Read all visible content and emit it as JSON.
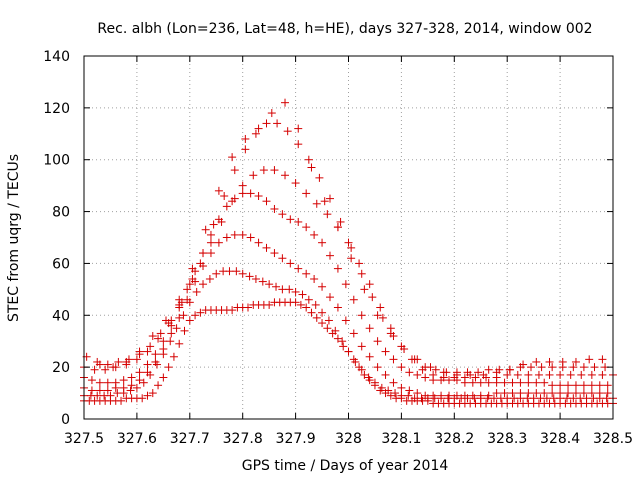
{
  "chart_data": {
    "type": "scatter",
    "title": "Rec. albh (Lon=236, Lat=48, h=HE), days 327-328, 2014, window 002",
    "xlabel": "GPS time / Days of year 2014",
    "ylabel": "STEC from uqrg / TECUs",
    "xlim": [
      327.5,
      328.5
    ],
    "ylim": [
      0,
      140
    ],
    "xticks": [
      327.5,
      327.6,
      327.7,
      327.8,
      327.9,
      328,
      328.1,
      328.2,
      328.3,
      328.4,
      328.5
    ],
    "xtick_labels": [
      "327.5",
      "327.6",
      "327.7",
      "327.8",
      "327.9",
      "328",
      "328.1",
      "328.2",
      "328.3",
      "328.4",
      "328.5"
    ],
    "yticks": [
      0,
      20,
      40,
      60,
      80,
      100,
      120,
      140
    ],
    "ytick_labels": [
      "0",
      "20",
      "40",
      "60",
      "80",
      "100",
      "120",
      "140"
    ],
    "grid": true,
    "marker": "+",
    "color": "#d40000",
    "series": [
      {
        "x": [
          327.5,
          327.51,
          327.52,
          327.53,
          327.54,
          327.55,
          327.56,
          327.57,
          327.58,
          327.59,
          327.6,
          327.61,
          327.62,
          327.63,
          327.64,
          327.65,
          327.66,
          327.67,
          327.68,
          327.69,
          327.7,
          327.71,
          327.72,
          327.73,
          327.74,
          327.75,
          327.76,
          327.77,
          327.78,
          327.79,
          327.8,
          327.81,
          327.82,
          327.83,
          327.84,
          327.85,
          327.86,
          327.87,
          327.88,
          327.89,
          327.9,
          327.91,
          327.92,
          327.93,
          327.94,
          327.95,
          327.96,
          327.97,
          327.98,
          327.99,
          328.0,
          328.01,
          328.02,
          328.03,
          328.04,
          328.05,
          328.06,
          328.07,
          328.08,
          328.09,
          328.1,
          328.11,
          328.12,
          328.13,
          328.14,
          328.15,
          328.16,
          328.17,
          328.18,
          328.19,
          328.2,
          328.21,
          328.22,
          328.23,
          328.24,
          328.25,
          328.26,
          328.27,
          328.28,
          328.29,
          328.3,
          328.31,
          328.32,
          328.33,
          328.34,
          328.35,
          328.36,
          328.37,
          328.38,
          328.39,
          328.4,
          328.41,
          328.42,
          328.43,
          328.44,
          328.45,
          328.46,
          328.47,
          328.48,
          328.49,
          328.5
        ],
        "y": [
          7,
          7,
          7,
          7,
          7,
          7,
          7,
          7,
          8,
          8,
          8,
          8,
          9,
          10,
          13,
          16,
          20,
          24,
          29,
          34,
          38,
          40,
          41,
          42,
          42,
          42,
          42,
          42,
          42,
          43,
          43,
          43,
          44,
          44,
          44,
          44,
          45,
          45,
          45,
          45,
          45,
          44,
          43,
          41,
          39,
          37,
          35,
          33,
          31,
          28,
          26,
          23,
          20,
          17,
          15,
          13,
          11,
          10,
          9,
          8,
          8,
          7,
          7,
          7,
          7,
          7,
          6,
          6,
          6,
          6,
          6,
          6,
          6,
          6,
          6,
          6,
          6,
          6,
          6,
          6,
          6,
          6,
          6,
          6,
          6,
          6,
          6,
          6,
          6,
          6,
          6,
          6,
          6,
          6,
          6,
          6,
          6,
          6,
          6,
          6,
          6
        ]
      },
      {
        "x": [
          327.5,
          327.513,
          327.525,
          327.538,
          327.55,
          327.563,
          327.575,
          327.588,
          327.6,
          327.613,
          327.625,
          327.638,
          327.65,
          327.663,
          327.675,
          327.688,
          327.7,
          327.713,
          327.725,
          327.738,
          327.75,
          327.763,
          327.775,
          327.788,
          327.8,
          327.813,
          327.825,
          327.838,
          327.85,
          327.863,
          327.875,
          327.888,
          327.9,
          327.913,
          327.925,
          327.938,
          327.95,
          327.963,
          327.975,
          327.988,
          328.0,
          328.013,
          328.025,
          328.038,
          328.05,
          328.063,
          328.075,
          328.088,
          328.1,
          328.113,
          328.125,
          328.138,
          328.15,
          328.163,
          328.175,
          328.188,
          328.2,
          328.213,
          328.225,
          328.238,
          328.25,
          328.263,
          328.275,
          328.288,
          328.3,
          328.313,
          328.325,
          328.338,
          328.35,
          328.363,
          328.375,
          328.388,
          328.4,
          328.413,
          328.425,
          328.438,
          328.45,
          328.463,
          328.475,
          328.488,
          328.5
        ],
        "y": [
          9,
          9,
          9,
          9,
          9,
          10,
          10,
          11,
          12,
          14,
          17,
          21,
          25,
          30,
          35,
          40,
          45,
          49,
          52,
          54,
          56,
          57,
          57,
          57,
          56,
          55,
          54,
          53,
          52,
          51,
          50,
          50,
          49,
          48,
          46,
          44,
          41,
          38,
          34,
          30,
          26,
          22,
          19,
          16,
          14,
          12,
          11,
          10,
          9,
          9,
          8,
          8,
          8,
          8,
          8,
          8,
          8,
          8,
          8,
          8,
          8,
          8,
          8,
          8,
          8,
          8,
          8,
          8,
          8,
          8,
          8,
          8,
          8,
          8,
          8,
          8,
          8,
          8,
          8,
          8,
          8
        ]
      },
      {
        "x": [
          327.5,
          327.515,
          327.53,
          327.545,
          327.56,
          327.575,
          327.59,
          327.605,
          327.62,
          327.635,
          327.65,
          327.665,
          327.68,
          327.695,
          327.71,
          327.725,
          327.74,
          327.755,
          327.77,
          327.785,
          327.8,
          327.815,
          327.83,
          327.845,
          327.86,
          327.875,
          327.89,
          327.905,
          327.92,
          327.935,
          327.95,
          327.965,
          327.98,
          327.995,
          328.01,
          328.025,
          328.04,
          328.055,
          328.07,
          328.085,
          328.1,
          328.115,
          328.13,
          328.145,
          328.16,
          328.175,
          328.19,
          328.205,
          328.22,
          328.235,
          328.25,
          328.265,
          328.28,
          328.295,
          328.31,
          328.325,
          328.34,
          328.355,
          328.37,
          328.385,
          328.4,
          328.415,
          328.43,
          328.445,
          328.46,
          328.475,
          328.49
        ],
        "y": [
          12,
          11,
          11,
          11,
          12,
          12,
          13,
          15,
          18,
          22,
          27,
          33,
          39,
          46,
          53,
          59,
          64,
          68,
          70,
          71,
          71,
          70,
          68,
          66,
          64,
          62,
          60,
          58,
          56,
          54,
          51,
          47,
          43,
          38,
          33,
          28,
          24,
          20,
          17,
          14,
          12,
          11,
          10,
          9,
          9,
          9,
          9,
          9,
          9,
          9,
          9,
          9,
          10,
          10,
          10,
          10,
          10,
          10,
          10,
          10,
          10,
          10,
          10,
          10,
          10,
          10,
          10
        ]
      },
      {
        "x": [
          327.5,
          327.515,
          327.53,
          327.545,
          327.56,
          327.575,
          327.59,
          327.605,
          327.62,
          327.635,
          327.65,
          327.665,
          327.68,
          327.695,
          327.71,
          327.725,
          327.74,
          327.755,
          327.77,
          327.785,
          327.8,
          327.815,
          327.83,
          327.845,
          327.86,
          327.875,
          327.89,
          327.905,
          327.92,
          327.935,
          327.95,
          327.965,
          327.98,
          327.995,
          328.01,
          328.025,
          328.04,
          328.055,
          328.07,
          328.085,
          328.1,
          328.115,
          328.13,
          328.145,
          328.16,
          328.175,
          328.19,
          328.205,
          328.22,
          328.235,
          328.25,
          328.265,
          328.28,
          328.295,
          328.31,
          328.325,
          328.34,
          328.355,
          328.37,
          328.385,
          328.4,
          328.415,
          328.43,
          328.445,
          328.46,
          328.475,
          328.49
        ],
        "y": [
          16,
          15,
          14,
          14,
          14,
          15,
          16,
          18,
          21,
          25,
          30,
          36,
          43,
          50,
          57,
          64,
          71,
          77,
          82,
          85,
          87,
          87,
          86,
          84,
          81,
          79,
          77,
          76,
          74,
          71,
          68,
          63,
          58,
          52,
          46,
          40,
          35,
          30,
          26,
          23,
          20,
          18,
          17,
          16,
          15,
          15,
          15,
          15,
          14,
          14,
          14,
          14,
          14,
          14,
          14,
          14,
          14,
          14,
          14,
          13,
          13,
          13,
          13,
          13,
          13,
          13,
          13
        ]
      },
      {
        "x": [
          327.5,
          327.52,
          327.54,
          327.56,
          327.58,
          327.6,
          327.62,
          327.64,
          327.66,
          327.68,
          327.7,
          327.72,
          327.74,
          327.76,
          327.78,
          327.8,
          327.82,
          327.84,
          327.86,
          327.88,
          327.9,
          327.92,
          327.94,
          327.96,
          327.98,
          328.0,
          328.02,
          328.04,
          328.06,
          328.08,
          328.1,
          328.12,
          328.14,
          328.16,
          328.18,
          328.2,
          328.22,
          328.24,
          328.26,
          328.28,
          328.3,
          328.32,
          328.34,
          328.36,
          328.38,
          328.4,
          328.42,
          328.44,
          328.46,
          328.48,
          328.5
        ],
        "y": [
          20,
          19,
          19,
          20,
          21,
          23,
          26,
          31,
          37,
          44,
          52,
          60,
          68,
          76,
          84,
          90,
          94,
          96,
          96,
          94,
          91,
          87,
          83,
          79,
          74,
          68,
          60,
          52,
          43,
          35,
          28,
          23,
          19,
          17,
          16,
          16,
          16,
          16,
          16,
          16,
          17,
          17,
          17,
          17,
          17,
          17,
          17,
          17,
          17,
          17,
          17
        ]
      },
      {
        "x": [
          327.525,
          327.545,
          327.565,
          327.585,
          327.605,
          327.625,
          327.645,
          327.665,
          327.685,
          327.705,
          327.725,
          327.745,
          327.765,
          327.785,
          327.805,
          327.825,
          327.845,
          327.865,
          327.885,
          327.905,
          327.925,
          327.945,
          327.965,
          327.985,
          328.005,
          328.025,
          328.045,
          328.065,
          328.085,
          328.105,
          328.125,
          328.145,
          328.165,
          328.185,
          328.205,
          328.225,
          328.245,
          328.265,
          328.285,
          328.305,
          328.325,
          328.345,
          328.365,
          328.385,
          328.405,
          328.425,
          328.445,
          328.465,
          328.485
        ],
        "y": [
          22,
          21,
          22,
          23,
          25,
          28,
          33,
          38,
          45,
          54,
          64,
          75,
          86,
          96,
          104,
          110,
          114,
          114,
          111,
          106,
          100,
          93,
          85,
          76,
          66,
          56,
          47,
          39,
          32,
          27,
          23,
          20,
          19,
          18,
          18,
          18,
          18,
          19,
          19,
          19,
          20,
          20,
          20,
          20,
          20,
          20,
          20,
          20,
          20
        ]
      },
      {
        "x": [
          327.505,
          327.53,
          327.555,
          327.58,
          327.605,
          327.63,
          327.655,
          327.68,
          327.705,
          327.73,
          327.755,
          327.78,
          327.805,
          327.83,
          327.855,
          327.88,
          327.905,
          327.93,
          327.955,
          327.98,
          328.005,
          328.03,
          328.055,
          328.08,
          328.105,
          328.13,
          328.155,
          328.18,
          328.205,
          328.23,
          328.255,
          328.28,
          328.305,
          328.33,
          328.355,
          328.38,
          328.405,
          328.43,
          328.455,
          328.48
        ],
        "y": [
          24,
          21,
          20,
          22,
          26,
          32,
          38,
          46,
          58,
          73,
          88,
          101,
          108,
          112,
          118,
          122,
          112,
          97,
          84,
          74,
          62,
          50,
          40,
          33,
          27,
          23,
          20,
          18,
          17,
          17,
          17,
          18,
          19,
          21,
          22,
          22,
          22,
          22,
          23,
          23
        ]
      }
    ]
  }
}
